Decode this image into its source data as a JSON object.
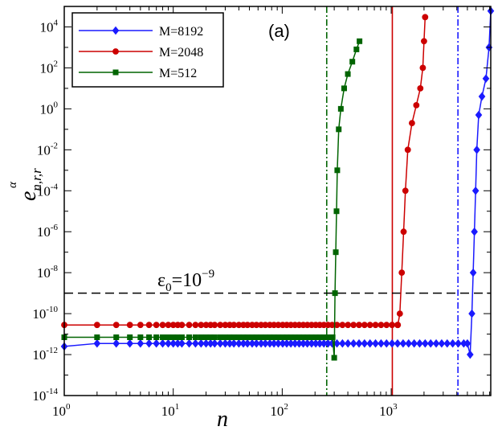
{
  "chart_data": {
    "type": "line",
    "panel_label": "(a)",
    "xlabel": "n",
    "ylabel": {
      "base": "e",
      "subscript": "n,r,r",
      "superscript": "α"
    },
    "xscale": "log",
    "yscale": "log",
    "xlim": [
      1,
      8192
    ],
    "ylim": [
      1e-14,
      100000.0
    ],
    "x_ticks": [
      {
        "base": "10",
        "exp": "0",
        "value": 1
      },
      {
        "base": "10",
        "exp": "1",
        "value": 10
      },
      {
        "base": "10",
        "exp": "2",
        "value": 100
      },
      {
        "base": "10",
        "exp": "3",
        "value": 1000
      }
    ],
    "y_ticks": [
      {
        "base": "10",
        "exp": "-14",
        "value": 1e-14
      },
      {
        "base": "10",
        "exp": "-12",
        "value": 1e-12
      },
      {
        "base": "10",
        "exp": "-10",
        "value": 1e-10
      },
      {
        "base": "10",
        "exp": "-8",
        "value": 1e-08
      },
      {
        "base": "10",
        "exp": "-6",
        "value": 1e-06
      },
      {
        "base": "10",
        "exp": "-4",
        "value": 0.0001
      },
      {
        "base": "10",
        "exp": "-2",
        "value": 0.01
      },
      {
        "base": "10",
        "exp": "0",
        "value": 1
      },
      {
        "base": "10",
        "exp": "2",
        "value": 100
      },
      {
        "base": "10",
        "exp": "4",
        "value": 10000
      }
    ],
    "threshold": {
      "value": 1e-09,
      "label_symbol": "ε",
      "label_sub": "0",
      "label_eq": "=10",
      "label_exp": "−9",
      "color": "#000000"
    },
    "vertical_lines": [
      {
        "x": 256,
        "color": "#006400",
        "style": "dashdot",
        "series": "M=512"
      },
      {
        "x": 1024,
        "color": "#cc0000",
        "style": "solid",
        "series": "M=2048"
      },
      {
        "x": 4096,
        "color": "#1a1aff",
        "style": "dashdot",
        "series": "M=8192"
      }
    ],
    "series": [
      {
        "name": "M=8192",
        "color": "#1a1aff",
        "marker": "diamond",
        "plateau": {
          "n_start": 1,
          "n_end": 5000,
          "value_start": 2.5e-12,
          "value_plateau": 3.5e-12,
          "step": 1
        },
        "rise": [
          [
            5000,
            3.5e-12
          ],
          [
            5300,
            1e-12
          ],
          [
            5500,
            1e-10
          ],
          [
            5650,
            1e-08
          ],
          [
            5800,
            1e-06
          ],
          [
            5950,
            0.0001
          ],
          [
            6100,
            0.01
          ],
          [
            6350,
            0.5
          ],
          [
            6800,
            4
          ],
          [
            7400,
            30
          ],
          [
            7900,
            1000
          ],
          [
            8192,
            60000
          ]
        ]
      },
      {
        "name": "M=2048",
        "color": "#cc0000",
        "marker": "circle",
        "plateau": {
          "n_start": 1,
          "n_end": 1150,
          "value_start": 2.8e-11,
          "value_plateau": 2.8e-11,
          "step": 1
        },
        "rise": [
          [
            1150,
            2.8e-11
          ],
          [
            1200,
            1e-10
          ],
          [
            1250,
            1e-08
          ],
          [
            1300,
            1e-06
          ],
          [
            1350,
            0.0001
          ],
          [
            1420,
            0.01
          ],
          [
            1550,
            0.2
          ],
          [
            1700,
            1.5
          ],
          [
            1850,
            10
          ],
          [
            1950,
            100
          ],
          [
            2000,
            2000
          ],
          [
            2048,
            30000
          ]
        ]
      },
      {
        "name": "M=512",
        "color": "#006400",
        "marker": "square",
        "plateau": {
          "n_start": 1,
          "n_end": 290,
          "value_start": 7e-12,
          "value_plateau": 7e-12,
          "step": 1
        },
        "rise": [
          [
            290,
            7e-12
          ],
          [
            300,
            7e-13
          ],
          [
            305,
            1e-09
          ],
          [
            310,
            1e-07
          ],
          [
            315,
            1e-05
          ],
          [
            320,
            0.001
          ],
          [
            330,
            0.1
          ],
          [
            345,
            1
          ],
          [
            370,
            10
          ],
          [
            400,
            50
          ],
          [
            440,
            200
          ],
          [
            480,
            800
          ],
          [
            512,
            2000
          ]
        ]
      }
    ],
    "legend": {
      "position": "top-left",
      "entries": [
        "M=8192",
        "M=2048",
        "M=512"
      ]
    }
  }
}
